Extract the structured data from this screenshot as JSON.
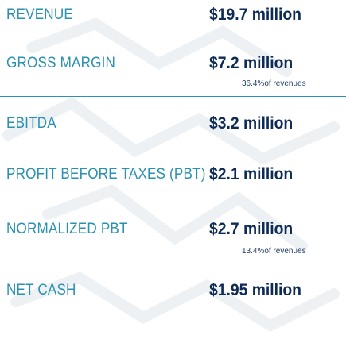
{
  "metrics": [
    {
      "label": "REVENUE",
      "value": "$19.7 million",
      "note": ""
    },
    {
      "label": "GROSS MARGIN",
      "value": "$7.2 million",
      "note": "36.4%of revenues"
    },
    {
      "label": "EBITDA",
      "value": "$3.2 million",
      "note": ""
    },
    {
      "label": "PROFIT BEFORE TAXES (PBT)",
      "value": "$2.1 million",
      "note": ""
    },
    {
      "label": "NORMALIZED PBT",
      "value": "$2.7 million",
      "note": "13.4%of revenues"
    },
    {
      "label": "NET CASH",
      "value": "$1.95 million",
      "note": ""
    }
  ],
  "colors": {
    "label": "#2a91b3",
    "value": "#0d2b55",
    "divider": "#2a91b3"
  }
}
